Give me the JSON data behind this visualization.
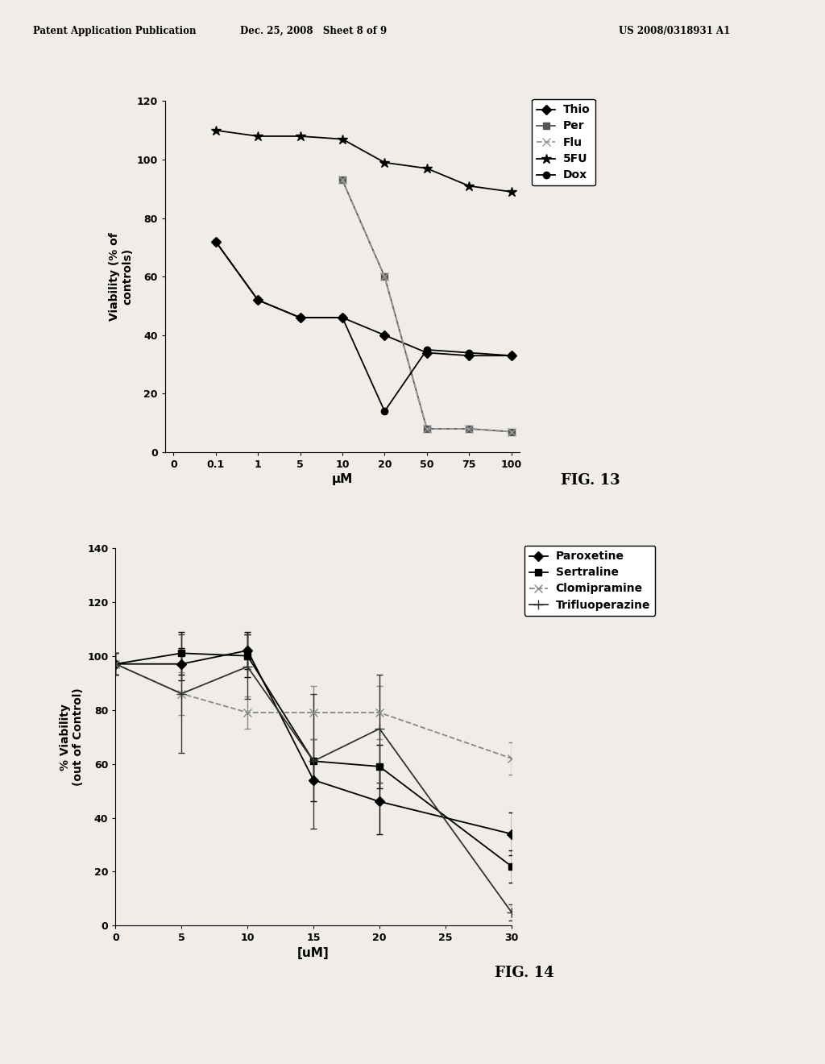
{
  "fig13": {
    "xlabel": "μM",
    "ylabel": "Viability (% of\ncontrols)",
    "x_labels": [
      "0",
      "0.1",
      "1",
      "5",
      "10",
      "20",
      "50",
      "75",
      "100"
    ],
    "ylim": [
      0,
      120
    ],
    "yticks": [
      0,
      20,
      40,
      60,
      80,
      100,
      120
    ],
    "series": {
      "Thio": {
        "x_idx": [
          1,
          2,
          3,
          4,
          5,
          6,
          7,
          8
        ],
        "y": [
          72,
          52,
          46,
          46,
          40,
          34,
          33,
          33
        ],
        "marker": "D",
        "color": "#000000",
        "linestyle": "-",
        "markersize": 6,
        "markerfacecolor": "#000000"
      },
      "Per": {
        "x_idx": [
          4,
          5,
          6,
          7,
          8
        ],
        "y": [
          93,
          60,
          8,
          8,
          7
        ],
        "marker": "s",
        "color": "#555555",
        "linestyle": "-",
        "markersize": 6,
        "markerfacecolor": "#555555"
      },
      "Flu": {
        "x_idx": [
          4,
          5,
          6,
          7,
          8
        ],
        "y": [
          93,
          60,
          8,
          8,
          7
        ],
        "marker": "x",
        "color": "#999999",
        "linestyle": "--",
        "markersize": 7,
        "markerfacecolor": "none"
      },
      "5FU": {
        "x_idx": [
          1,
          2,
          3,
          4,
          5,
          6,
          7,
          8
        ],
        "y": [
          110,
          108,
          108,
          107,
          99,
          97,
          91,
          89
        ],
        "marker": "*",
        "color": "#000000",
        "linestyle": "-",
        "markersize": 9,
        "markerfacecolor": "#000000"
      },
      "Dox": {
        "x_idx": [
          1,
          2,
          3,
          4,
          5,
          6,
          7,
          8
        ],
        "y": [
          72,
          52,
          46,
          46,
          14,
          35,
          34,
          33
        ],
        "marker": "o",
        "color": "#000000",
        "linestyle": "-",
        "markersize": 6,
        "markerfacecolor": "#000000"
      }
    },
    "legend_order": [
      "Thio",
      "Per",
      "Flu",
      "5FU",
      "Dox"
    ]
  },
  "fig14": {
    "xlabel": "[uM]",
    "ylabel": "% Viability\n(out of Control)",
    "xlim": [
      0,
      30
    ],
    "ylim": [
      0,
      140
    ],
    "xticks": [
      0,
      5,
      10,
      15,
      20,
      25,
      30
    ],
    "yticks": [
      0,
      20,
      40,
      60,
      80,
      100,
      120,
      140
    ],
    "series": {
      "Paroxetine": {
        "x": [
          0,
          5,
          10,
          15,
          20,
          30
        ],
        "y": [
          97,
          97,
          102,
          54,
          46,
          34
        ],
        "yerr": [
          4,
          6,
          7,
          8,
          12,
          8
        ],
        "marker": "D",
        "color": "#000000",
        "linestyle": "-",
        "markersize": 6,
        "markerfacecolor": "#000000"
      },
      "Sertraline": {
        "x": [
          0,
          5,
          10,
          15,
          20,
          30
        ],
        "y": [
          97,
          101,
          100,
          61,
          59,
          22
        ],
        "yerr": [
          4,
          8,
          8,
          8,
          8,
          6
        ],
        "marker": "s",
        "color": "#000000",
        "linestyle": "-",
        "markersize": 6,
        "markerfacecolor": "#000000"
      },
      "Clomipramine": {
        "x": [
          0,
          5,
          10,
          15,
          20,
          30
        ],
        "y": [
          97,
          86,
          79,
          79,
          79,
          62
        ],
        "yerr": [
          4,
          8,
          6,
          10,
          10,
          6
        ],
        "marker": "x",
        "color": "#888888",
        "linestyle": "--",
        "markersize": 7,
        "markerfacecolor": "none"
      },
      "Trifluoperazine": {
        "x": [
          0,
          5,
          10,
          15,
          20,
          30
        ],
        "y": [
          97,
          86,
          96,
          61,
          73,
          5
        ],
        "yerr": [
          4,
          22,
          12,
          25,
          20,
          3
        ],
        "marker": "+",
        "color": "#333333",
        "linestyle": "-",
        "markersize": 9,
        "markerfacecolor": "none"
      }
    },
    "legend_order": [
      "Paroxetine",
      "Sertraline",
      "Clomipramine",
      "Trifluoperazine"
    ]
  },
  "page_header": {
    "left": "Patent Application Publication",
    "center": "Dec. 25, 2008   Sheet 8 of 9",
    "right": "US 2008/0318931 A1"
  },
  "fig13_label": "FIG. 13",
  "fig14_label": "FIG. 14",
  "background_color": "#f0ede8"
}
